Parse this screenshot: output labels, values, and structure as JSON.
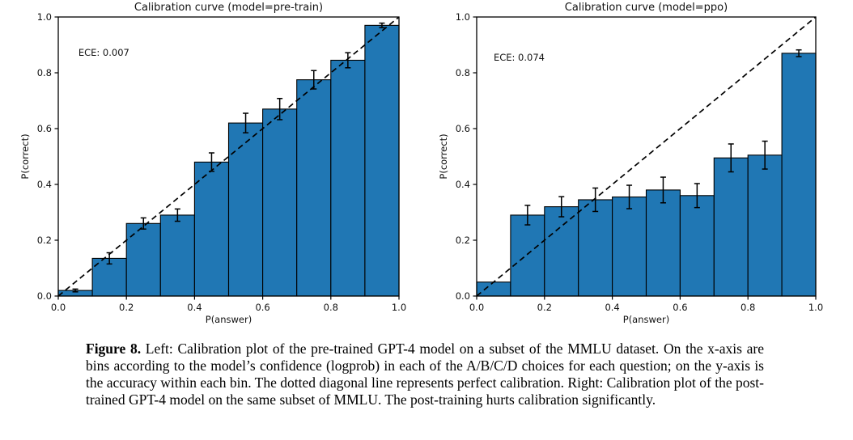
{
  "page": {
    "background": "#ffffff"
  },
  "caption": {
    "label": "Figure 8.",
    "text": " Left: Calibration plot of the pre-trained GPT-4 model on a subset of the MMLU dataset. On the x-axis are bins according to the model’s confidence (logprob) in each of the A/B/C/D choices for each question; on the y-axis is the accuracy within each bin. The dotted diagonal line represents perfect calibration. Right: Calibration plot of the post-trained GPT-4 model on the same subset of MMLU. The post-training hurts calibration significantly."
  },
  "chart_data": [
    {
      "type": "bar",
      "title": "Calibration curve (model=pre-train)",
      "annotation": {
        "text": "ECE: 0.007",
        "x": 0.059,
        "y": 0.861
      },
      "xlabel": "P(answer)",
      "ylabel": "P(correct)",
      "xlim": [
        0,
        1
      ],
      "ylim": [
        0,
        1
      ],
      "xticks": [
        0.0,
        0.2,
        0.4,
        0.6,
        0.8,
        1.0
      ],
      "yticks": [
        0.0,
        0.2,
        0.4,
        0.6,
        0.8,
        1.0
      ],
      "grid": false,
      "legend": "none",
      "bin_edges": [
        0.0,
        0.1,
        0.2,
        0.3,
        0.4,
        0.5,
        0.6,
        0.7,
        0.8,
        0.9,
        1.0
      ],
      "values": [
        0.02,
        0.135,
        0.26,
        0.29,
        0.48,
        0.62,
        0.67,
        0.775,
        0.845,
        0.97
      ],
      "errors": [
        0.005,
        0.02,
        0.02,
        0.022,
        0.033,
        0.035,
        0.038,
        0.033,
        0.027,
        0.008
      ],
      "bar_color": "#2077b4",
      "bar_edge_color": "#000000",
      "diagonal_line": {
        "style": "dashed",
        "color": "#000000",
        "from": [
          0,
          0
        ],
        "to": [
          1,
          1
        ],
        "meaning": "perfect calibration"
      }
    },
    {
      "type": "bar",
      "title": "Calibration curve (model=ppo)",
      "annotation": {
        "text": "ECE: 0.074",
        "x": 0.05,
        "y": 0.843
      },
      "xlabel": "P(answer)",
      "ylabel": "P(correct)",
      "xlim": [
        0,
        1
      ],
      "ylim": [
        0,
        1
      ],
      "xticks": [
        0.0,
        0.2,
        0.4,
        0.6,
        0.8,
        1.0
      ],
      "yticks": [
        0.0,
        0.2,
        0.4,
        0.6,
        0.8,
        1.0
      ],
      "grid": false,
      "legend": "none",
      "bin_edges": [
        0.0,
        0.1,
        0.2,
        0.3,
        0.4,
        0.5,
        0.6,
        0.7,
        0.8,
        0.9,
        1.0
      ],
      "values": [
        0.05,
        0.29,
        0.32,
        0.345,
        0.355,
        0.38,
        0.36,
        0.495,
        0.505,
        0.87
      ],
      "errors": [
        0,
        0.035,
        0.036,
        0.042,
        0.042,
        0.046,
        0.043,
        0.05,
        0.05,
        0.012
      ],
      "bar_color": "#2077b4",
      "bar_edge_color": "#000000",
      "diagonal_line": {
        "style": "dashed",
        "color": "#000000",
        "from": [
          0,
          0
        ],
        "to": [
          1,
          1
        ],
        "meaning": "perfect calibration"
      }
    }
  ]
}
